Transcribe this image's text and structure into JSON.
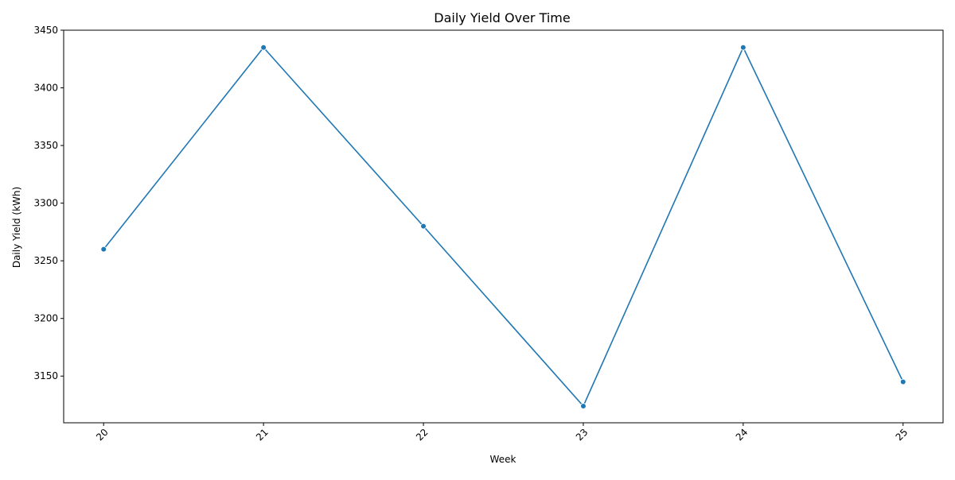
{
  "chart_data": {
    "type": "line",
    "title": "Daily Yield Over Time",
    "xlabel": "Week",
    "ylabel": "Daily Yield (kWh)",
    "x": [
      20,
      21,
      22,
      23,
      24,
      25
    ],
    "series": [
      {
        "name": "Daily Yield",
        "values": [
          3260,
          3435,
          3280,
          3124,
          3435,
          3145
        ],
        "color": "#1f77b4"
      }
    ],
    "xlim": [
      19.75,
      25.25
    ],
    "ylim": [
      3109.5,
      3450
    ],
    "x_ticks": [
      "20",
      "21",
      "22",
      "23",
      "24",
      "25"
    ],
    "y_ticks": [
      "3150",
      "3200",
      "3250",
      "3300",
      "3350",
      "3400",
      "3450"
    ],
    "x_tick_rotation_deg": 45,
    "grid": false,
    "marker": "circle"
  }
}
